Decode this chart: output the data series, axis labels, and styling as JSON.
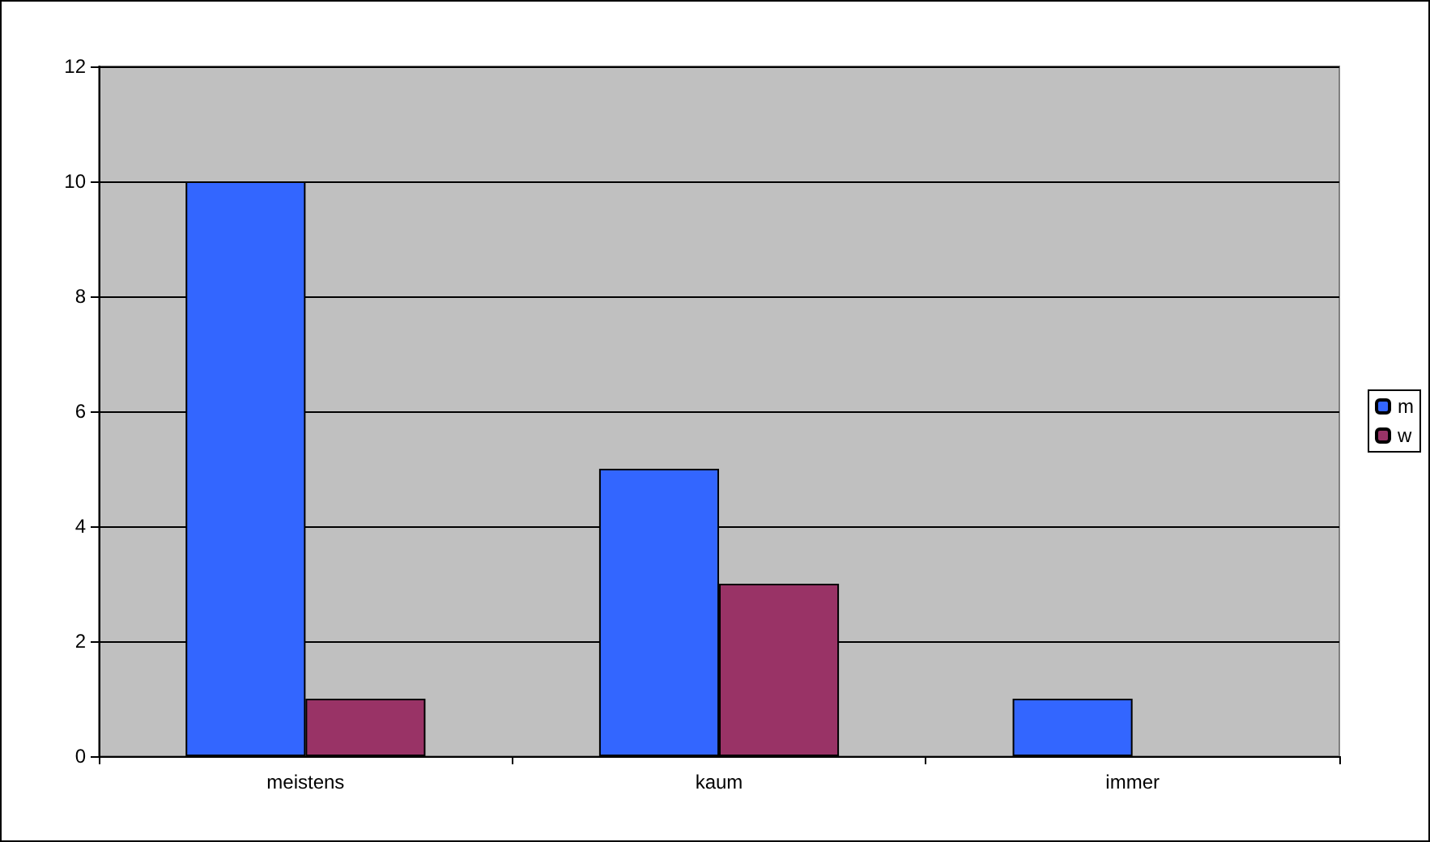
{
  "chart_data": {
    "type": "bar",
    "categories": [
      "meistens",
      "kaum",
      "immer"
    ],
    "series": [
      {
        "name": "m",
        "color": "#3366ff",
        "values": [
          10,
          5,
          1
        ]
      },
      {
        "name": "w",
        "color": "#993366",
        "values": [
          1,
          3,
          0
        ]
      }
    ],
    "ylim": [
      0,
      12
    ],
    "yticks": [
      0,
      2,
      4,
      6,
      8,
      10,
      12
    ],
    "grid": "y",
    "legend": "right"
  }
}
